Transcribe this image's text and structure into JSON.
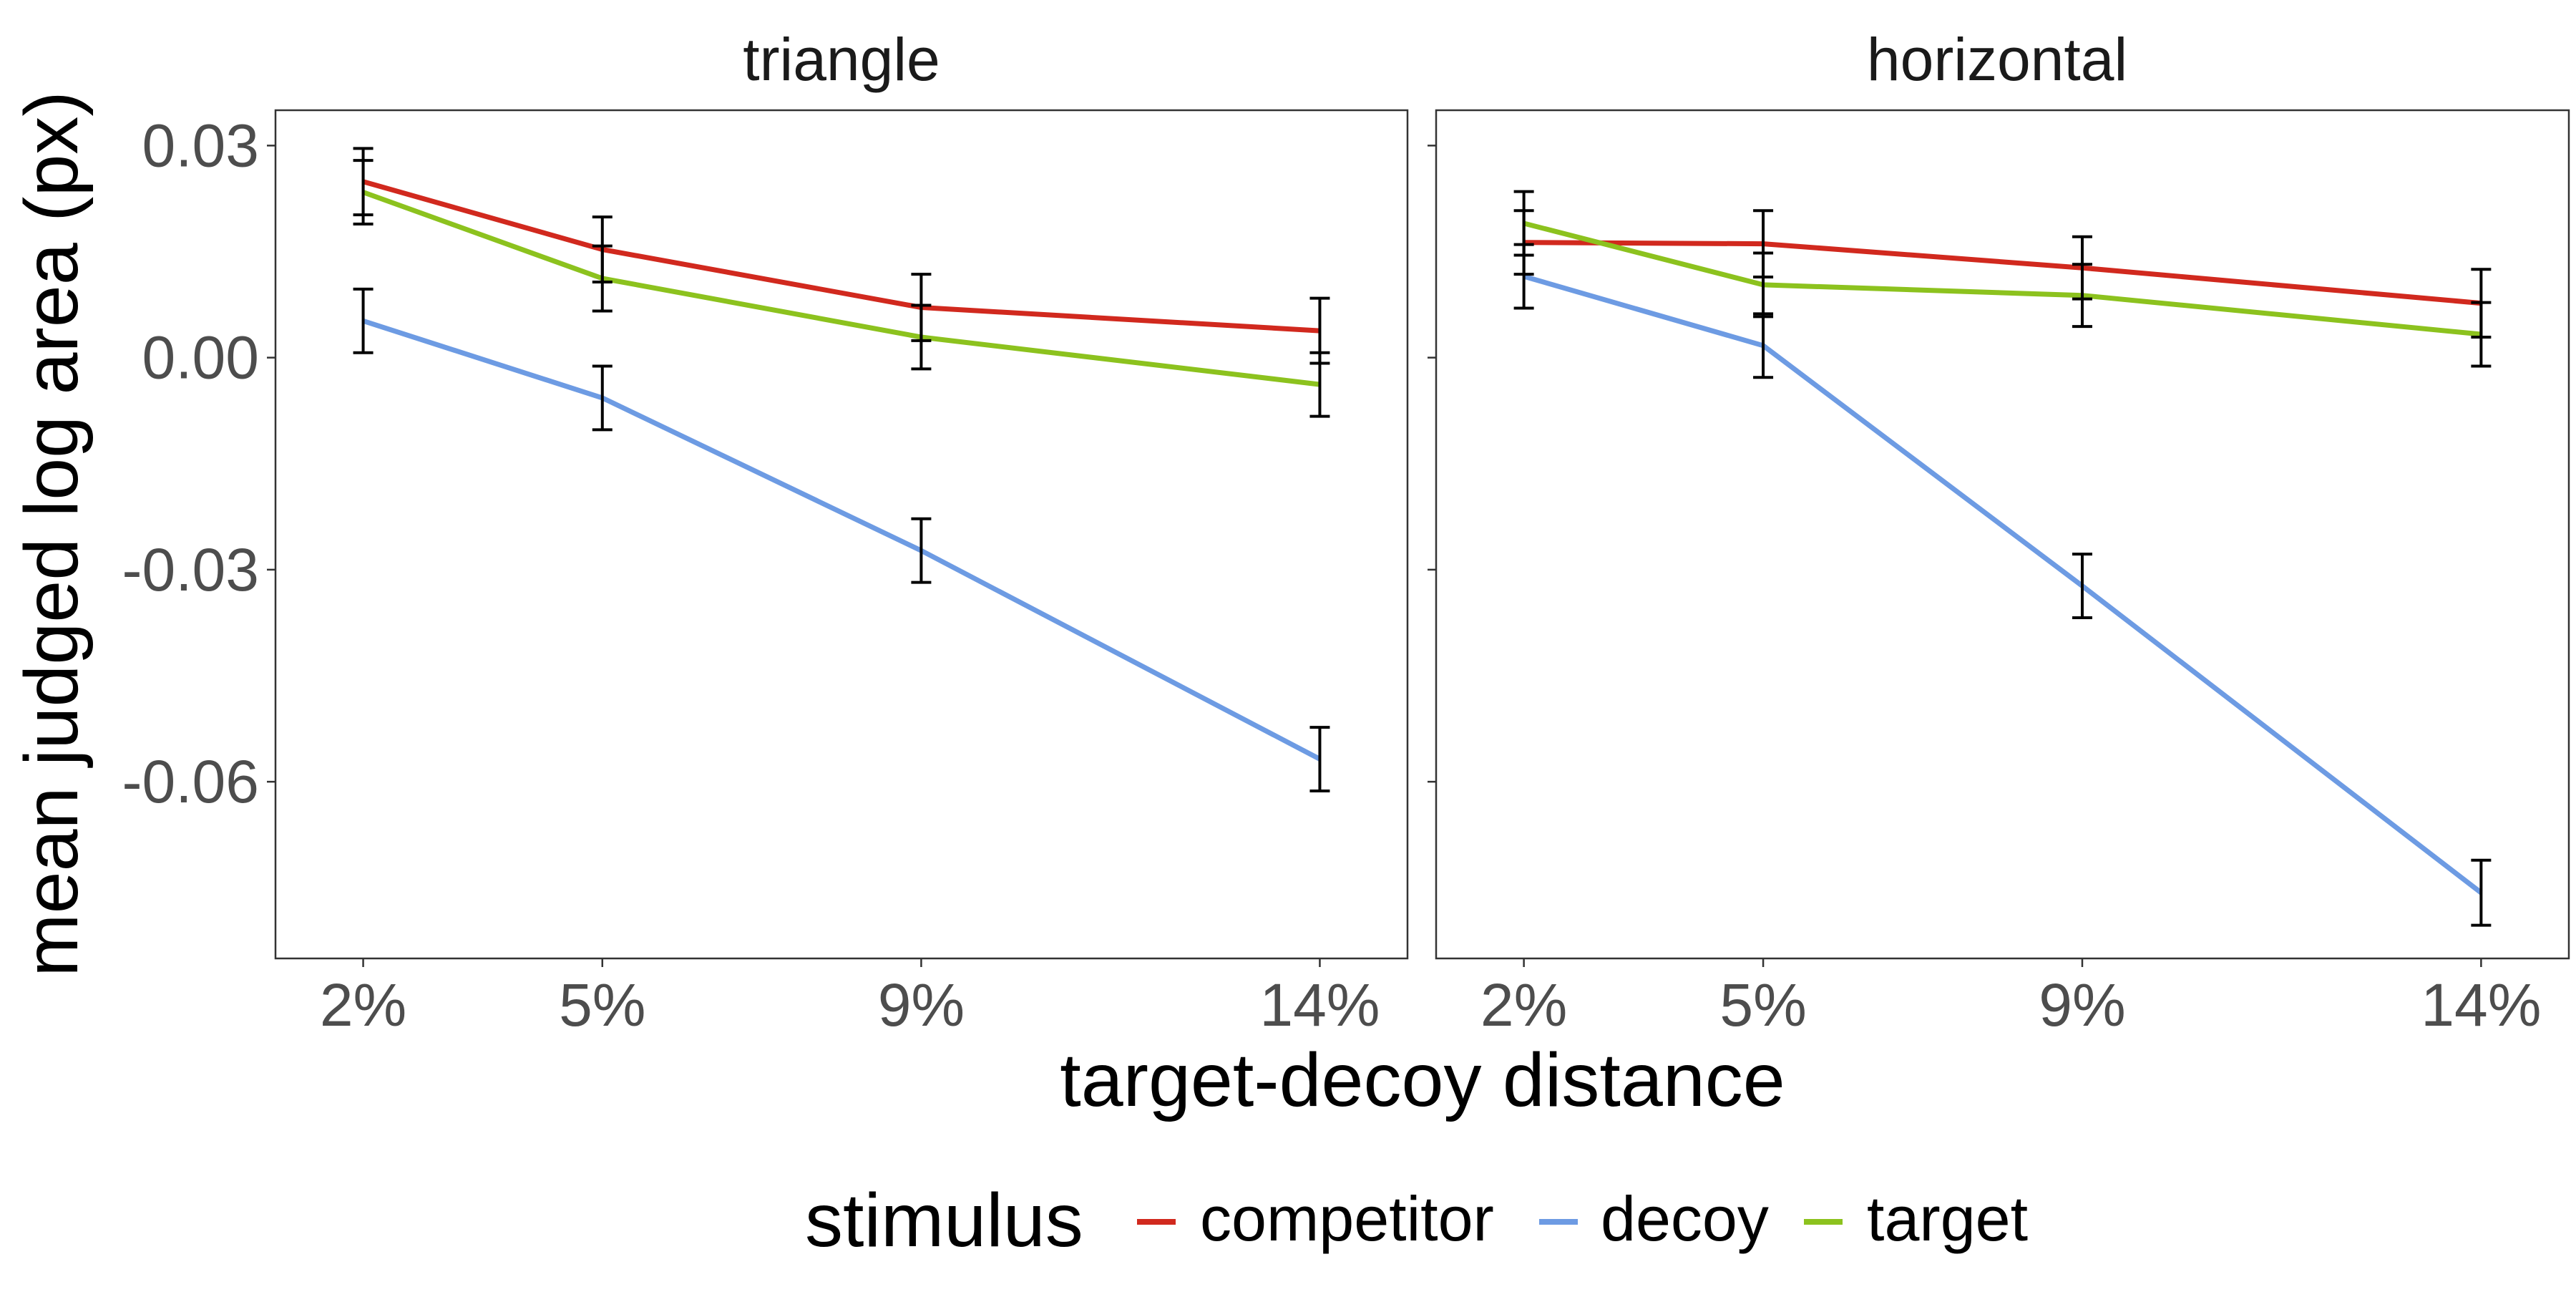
{
  "chart_data": {
    "type": "line",
    "ylabel": "mean judged log area (px)",
    "xlabel": "target-decoy distance",
    "x": [
      2,
      5,
      9,
      14
    ],
    "x_tick_labels": [
      "2%",
      "5%",
      "9%",
      "14%"
    ],
    "y_ticks": [
      0.03,
      0.0,
      -0.03,
      -0.06
    ],
    "y_tick_labels": [
      "0.03",
      "0.00",
      "-0.03",
      "-0.06"
    ],
    "ylim": [
      -0.085,
      0.035
    ],
    "xlim": [
      0.9,
      15.1
    ],
    "grid": false,
    "legend": {
      "title": "stimulus",
      "position": "bottom",
      "entries": [
        "competitor",
        "decoy",
        "target"
      ]
    },
    "colors": {
      "competitor": "#D1291E",
      "decoy": "#6D9BE3",
      "target": "#8CC21E"
    },
    "panels": [
      {
        "title": "triangle",
        "series": [
          {
            "name": "competitor",
            "values": [
              0.0249,
              0.0153,
              0.0071,
              0.0038
            ],
            "errors": [
              0.0047,
              0.0046,
              0.0047,
              0.0046
            ]
          },
          {
            "name": "decoy",
            "values": [
              0.0052,
              -0.0057,
              -0.0273,
              -0.0568
            ],
            "errors": [
              0.0045,
              0.0045,
              0.0045,
              0.0045
            ]
          },
          {
            "name": "target",
            "values": [
              0.0234,
              0.0112,
              0.0029,
              -0.0038
            ],
            "errors": [
              0.0045,
              0.0046,
              0.0045,
              0.0045
            ]
          }
        ]
      },
      {
        "title": "horizontal",
        "series": [
          {
            "name": "competitor",
            "values": [
              0.0163,
              0.0161,
              0.0127,
              0.0077
            ],
            "errors": [
              0.0045,
              0.0047,
              0.0044,
              0.0048
            ]
          },
          {
            "name": "decoy",
            "values": [
              0.0115,
              0.0017,
              -0.0323,
              -0.0757
            ],
            "errors": [
              0.0045,
              0.0045,
              0.0045,
              0.0046
            ]
          },
          {
            "name": "target",
            "values": [
              0.019,
              0.0103,
              0.0088,
              0.0033
            ],
            "errors": [
              0.0045,
              0.0045,
              0.0044,
              0.0045
            ]
          }
        ]
      }
    ]
  }
}
